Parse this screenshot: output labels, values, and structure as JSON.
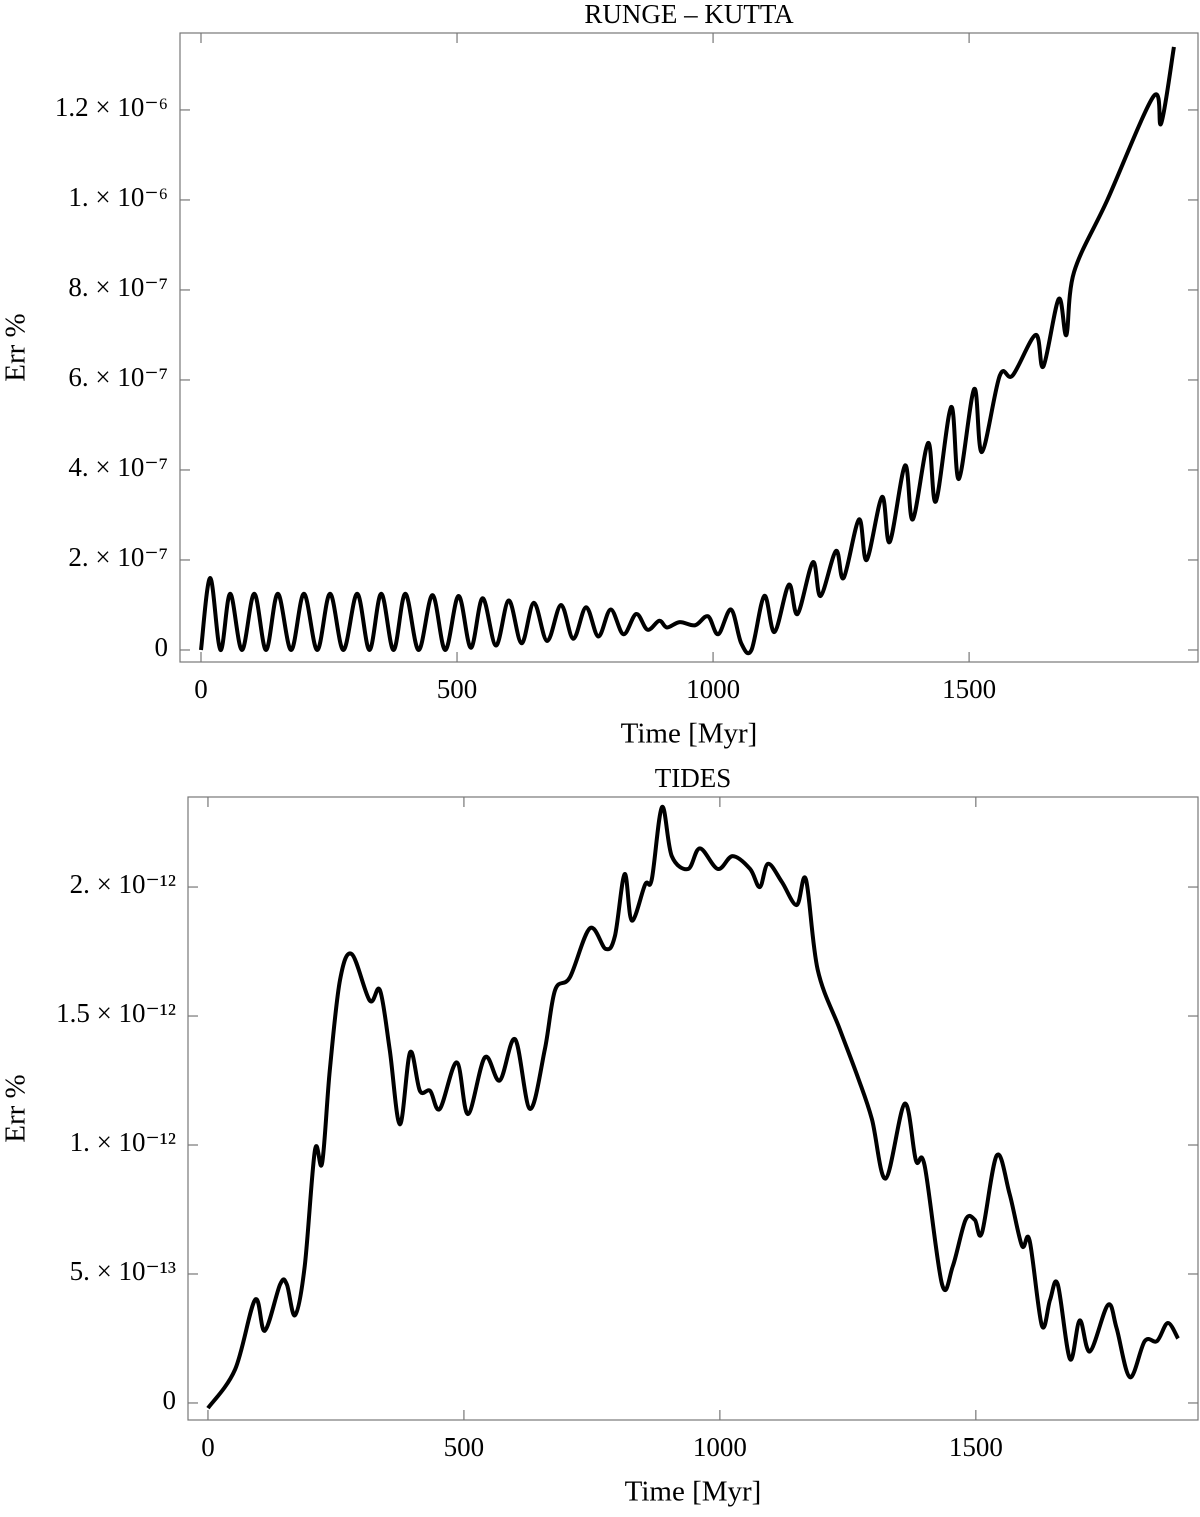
{
  "chart_data": [
    {
      "type": "line",
      "title": "RUNGE – KUTTA",
      "x_label": "Time [Myr]",
      "y_label": "Err %",
      "xlim": [
        -41,
        1947
      ],
      "ylim": [
        -2.67e-08,
        1.371e-06
      ],
      "xticks": [
        0,
        500,
        1000,
        1500
      ],
      "yticks": [
        0,
        {
          "value": 2e-07,
          "label": "2. × 10⁻⁷"
        },
        {
          "value": 4e-07,
          "label": "4. × 10⁻⁷"
        },
        {
          "value": 6e-07,
          "label": "6. × 10⁻⁷"
        },
        {
          "value": 8e-07,
          "label": "8. × 10⁻⁷"
        },
        {
          "value": 1e-06,
          "label": "1. × 10⁻⁶"
        },
        {
          "value": 1.2e-06,
          "label": "1.2 × 10⁻⁶"
        }
      ],
      "x": [
        0,
        18,
        38,
        57,
        80,
        104,
        127,
        150,
        176,
        201,
        227,
        252,
        278,
        305,
        329,
        352,
        376,
        399,
        425,
        452,
        477,
        503,
        527,
        550,
        576,
        601,
        626,
        650,
        676,
        703,
        727,
        752,
        776,
        800,
        825,
        850,
        872,
        895,
        910,
        935,
        965,
        990,
        1010,
        1035,
        1055,
        1075,
        1100,
        1120,
        1148,
        1165,
        1195,
        1210,
        1240,
        1255,
        1285,
        1300,
        1330,
        1345,
        1375,
        1390,
        1420,
        1435,
        1465,
        1480,
        1510,
        1525,
        1560,
        1585,
        1630,
        1645,
        1675,
        1690,
        1705,
        1770,
        1860,
        1875,
        1900
      ],
      "series": [
        {
          "color": "#000000",
          "values": [
            0,
            1.6e-07,
            0,
            1.25e-07,
            0,
            1.25e-07,
            0,
            1.25e-07,
            0,
            1.25e-07,
            0,
            1.25e-07,
            0,
            1.25e-07,
            0,
            1.25e-07,
            0,
            1.25e-07,
            0,
            1.22e-07,
            0,
            1.2e-07,
            5e-09,
            1.15e-07,
            1e-08,
            1.1e-07,
            1.5e-08,
            1.05e-07,
            2e-08,
            1e-07,
            2.5e-08,
            9.5e-08,
            3e-08,
            9e-08,
            3.5e-08,
            8e-08,
            4.5e-08,
            6.5e-08,
            5e-08,
            6.2e-08,
            5.5e-08,
            7.5e-08,
            3.5e-08,
            9e-08,
            1.5e-08,
            0,
            1.2e-07,
            4e-08,
            1.45e-07,
            8e-08,
            1.95e-07,
            1.2e-07,
            2.2e-07,
            1.6e-07,
            2.9e-07,
            2e-07,
            3.4e-07,
            2.4e-07,
            4.1e-07,
            2.9e-07,
            4.6e-07,
            3.3e-07,
            5.4e-07,
            3.8e-07,
            5.8e-07,
            4.4e-07,
            6.1e-07,
            6.1e-07,
            7e-07,
            6.3e-07,
            7.8e-07,
            7e-07,
            8.4e-07,
            1e-06,
            1.23e-06,
            1.17e-06,
            1.34e-06
          ]
        }
      ]
    },
    {
      "type": "line",
      "title": "TIDES",
      "x_label": "Time [Myr]",
      "y_label": "Err %",
      "xlim": [
        -39,
        1934
      ],
      "ylim": [
        -6.6e-14,
        2.349e-12
      ],
      "xticks": [
        0,
        500,
        1000,
        1500
      ],
      "yticks": [
        0,
        {
          "value": 5e-13,
          "label": "5. × 10⁻¹³"
        },
        {
          "value": 1e-12,
          "label": "1. × 10⁻¹²"
        },
        {
          "value": 1.5e-12,
          "label": "1.5 × 10⁻¹²"
        },
        {
          "value": 2e-12,
          "label": "2. × 10⁻¹²"
        }
      ],
      "x": [
        0,
        53,
        92,
        111,
        141,
        154,
        170,
        189,
        209,
        223,
        238,
        258,
        281,
        316,
        336,
        355,
        375,
        395,
        414,
        434,
        453,
        486,
        508,
        541,
        570,
        600,
        629,
        658,
        678,
        707,
        746,
        777,
        795,
        814,
        828,
        854,
        867,
        887,
        906,
        938,
        961,
        996,
        1025,
        1059,
        1078,
        1094,
        1121,
        1150,
        1168,
        1191,
        1234,
        1270,
        1297,
        1324,
        1361,
        1383,
        1400,
        1434,
        1455,
        1480,
        1498,
        1512,
        1541,
        1566,
        1590,
        1605,
        1629,
        1645,
        1660,
        1684,
        1703,
        1723,
        1758,
        1775,
        1801,
        1830,
        1854,
        1875,
        1895
      ],
      "series": [
        {
          "color": "#000000",
          "values": [
            -2e-14,
            1.3e-13,
            4e-13,
            2.8e-13,
            4.6e-13,
            4.6e-13,
            3.4e-13,
            5.3e-13,
            9.8e-13,
            9.3e-13,
            1.29e-12,
            1.64e-12,
            1.74e-12,
            1.56e-12,
            1.6e-12,
            1.37e-12,
            1.08e-12,
            1.36e-12,
            1.21e-12,
            1.21e-12,
            1.14e-12,
            1.32e-12,
            1.12e-12,
            1.34e-12,
            1.25e-12,
            1.41e-12,
            1.14e-12,
            1.37e-12,
            1.6e-12,
            1.65e-12,
            1.84e-12,
            1.76e-12,
            1.81e-12,
            2.05e-12,
            1.87e-12,
            2.01e-12,
            2.03e-12,
            2.31e-12,
            2.12e-12,
            2.07e-12,
            2.15e-12,
            2.07e-12,
            2.12e-12,
            2.07e-12,
            2e-12,
            2.09e-12,
            2.02e-12,
            1.93e-12,
            2.03e-12,
            1.68e-12,
            1.45e-12,
            1.26e-12,
            1.1e-12,
            8.7e-13,
            1.16e-12,
            9.4e-13,
            9.2e-13,
            4.6e-13,
            5.3e-13,
            7.1e-13,
            7.1e-13,
            6.6e-13,
            9.6e-13,
            8.1e-13,
            6.1e-13,
            6.3e-13,
            3e-13,
            4e-13,
            4.6e-13,
            1.7e-13,
            3.2e-13,
            2e-13,
            3.8e-13,
            2.9e-13,
            1e-13,
            2.4e-13,
            2.4e-13,
            3.1e-13,
            2.5e-13
          ]
        }
      ]
    }
  ]
}
